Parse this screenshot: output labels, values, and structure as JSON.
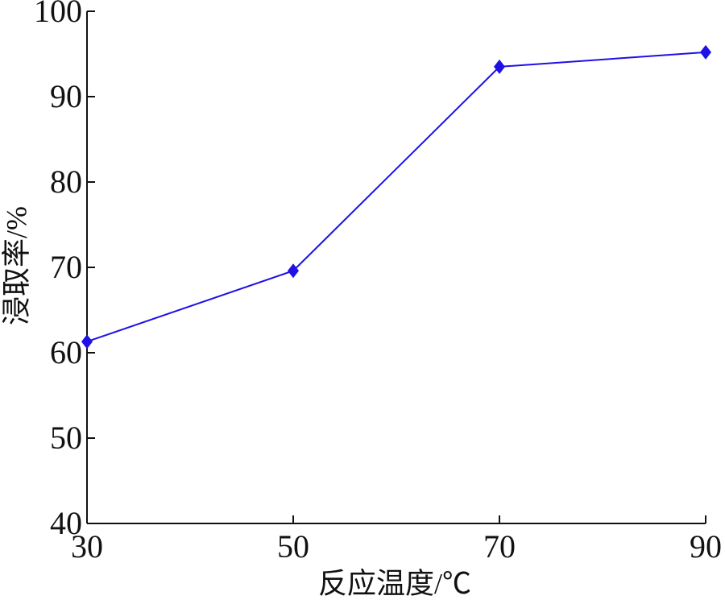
{
  "chart_data": {
    "type": "line",
    "x_label": "反应温度/℃",
    "y_label": "浸取率/%",
    "x": [
      30,
      50,
      70,
      90
    ],
    "series": [
      {
        "name": "浸取率",
        "color": "#1f10e6",
        "values": [
          61.3,
          69.6,
          93.5,
          95.2
        ]
      }
    ],
    "xlim": [
      30,
      90
    ],
    "xticks": [
      30,
      50,
      70,
      90
    ],
    "ylim": [
      40,
      100
    ],
    "yticks": [
      40,
      50,
      60,
      70,
      80,
      90,
      100
    ],
    "grid": false,
    "legend": false
  }
}
